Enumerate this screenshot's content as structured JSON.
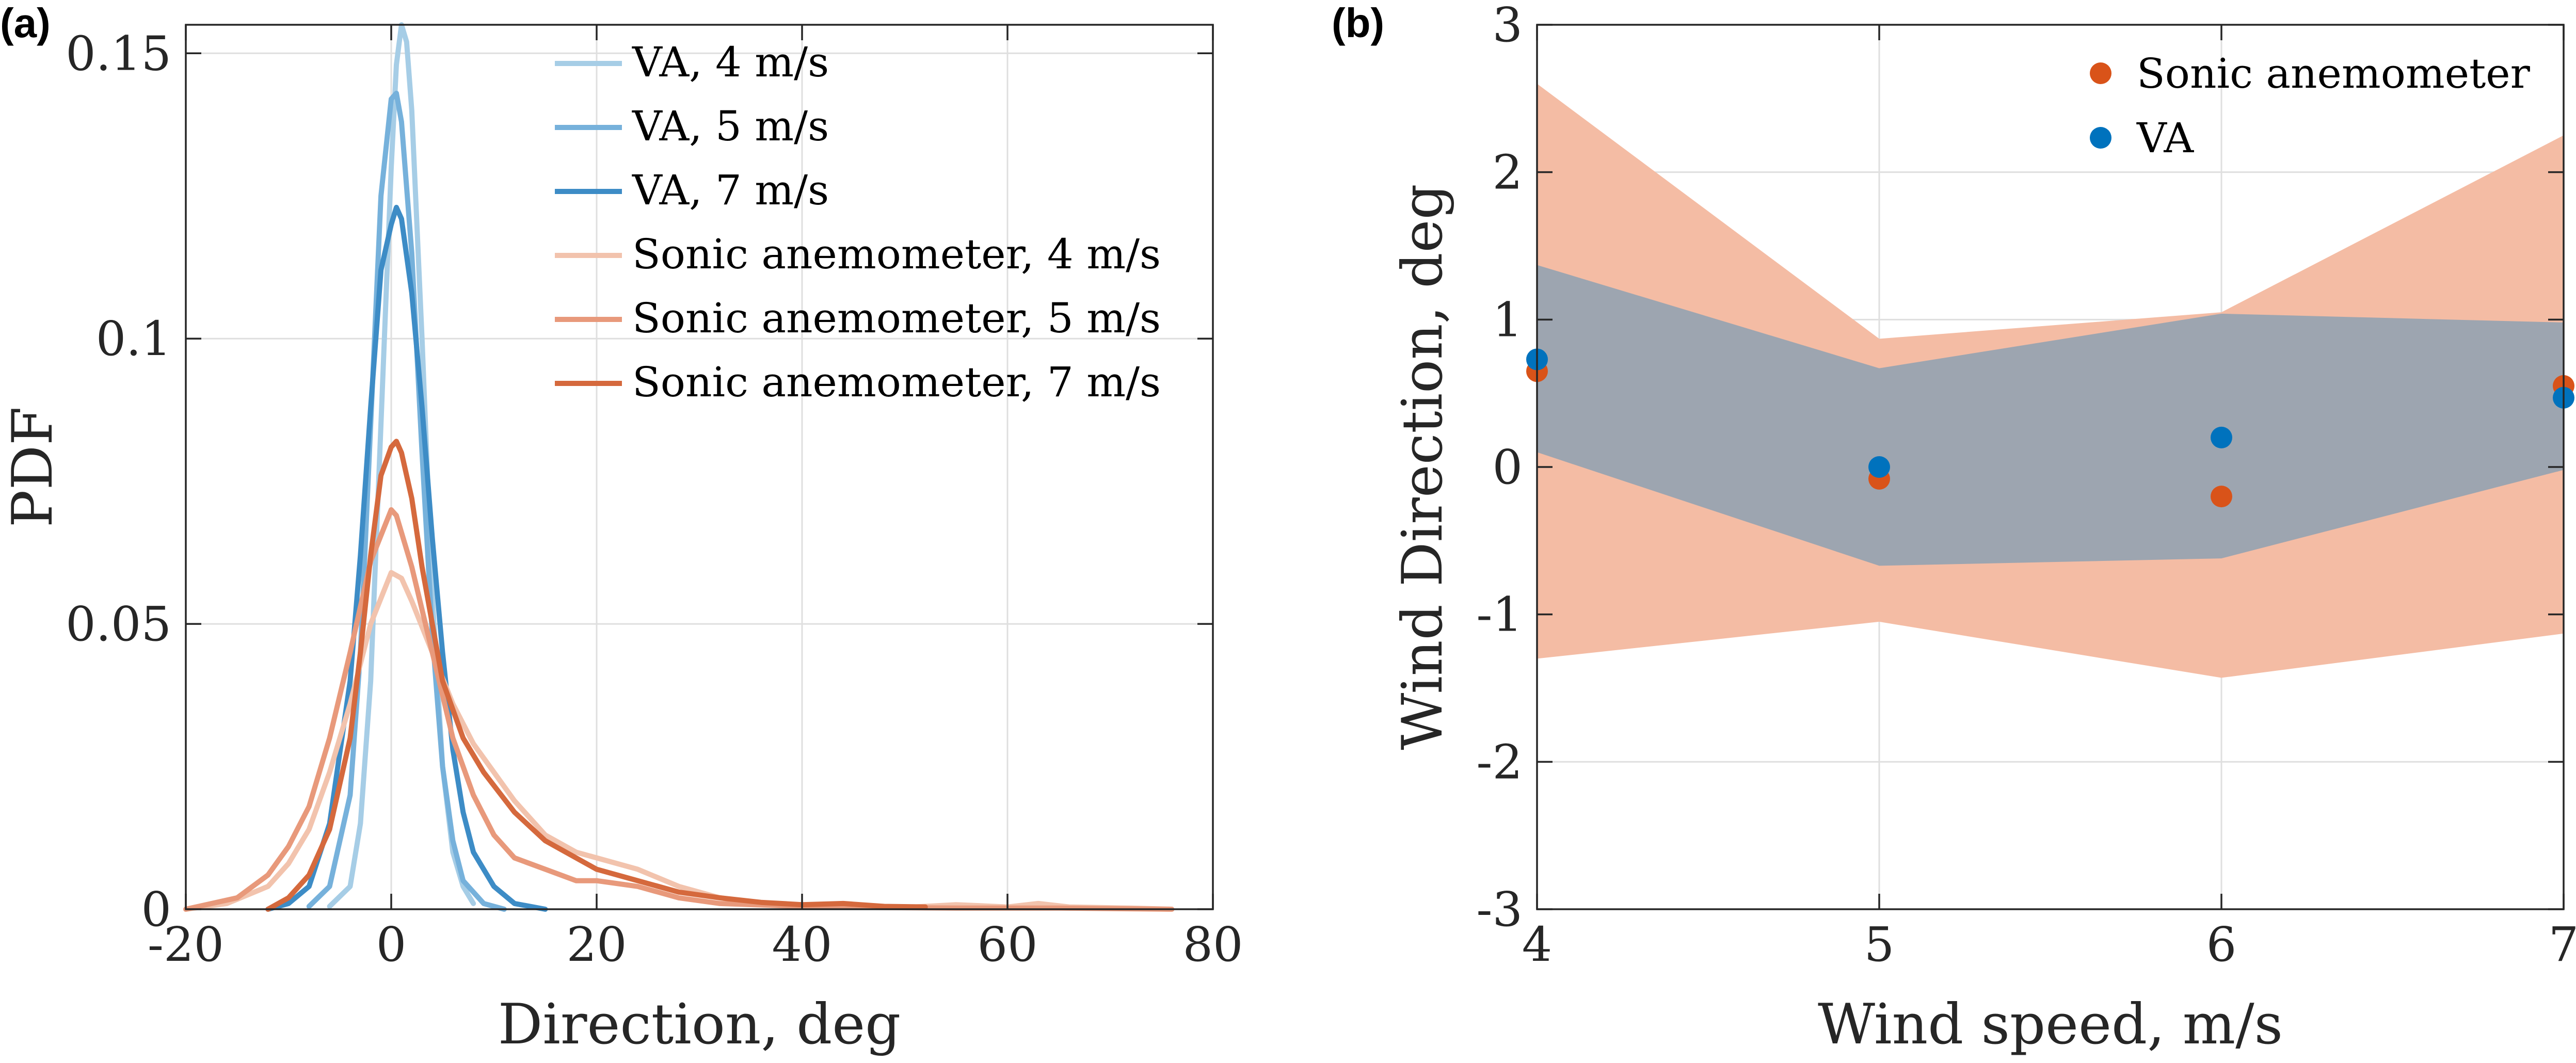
{
  "colors": {
    "va_4": "#a6cde6",
    "va_5": "#76b1db",
    "va_7": "#3d8cc6",
    "sonic_4": "#f2c3ad",
    "sonic_5": "#e8997b",
    "sonic_7": "#d5693d",
    "sonic_marker": "#d95319",
    "va_marker": "#0072bd",
    "sonic_band": "#f4bca4",
    "va_band": "#9ba4b0"
  },
  "panels": {
    "a_tag": "(a)",
    "b_tag": "(b)"
  },
  "chart_data": [
    {
      "id": "a",
      "type": "line",
      "title": "",
      "xlabel": "Direction, deg",
      "ylabel": "PDF",
      "xlim": [
        -20,
        80
      ],
      "ylim": [
        0,
        0.155
      ],
      "xticks": [
        -20,
        0,
        20,
        40,
        60,
        80
      ],
      "xtick_labels": [
        "-20",
        "0",
        "20",
        "40",
        "60",
        "80"
      ],
      "yticks": [
        0,
        0.05,
        0.1,
        0.15
      ],
      "ytick_labels": [
        "0",
        "0.05",
        "0.1",
        "0.15"
      ],
      "grid": true,
      "legend_position": "top-right",
      "series": [
        {
          "name": "VA, 4 m/s",
          "color_key": "va_4",
          "points": [
            [
              -6,
              0.0005
            ],
            [
              -4,
              0.004
            ],
            [
              -3,
              0.015
            ],
            [
              -2,
              0.04
            ],
            [
              -1,
              0.085
            ],
            [
              0,
              0.13
            ],
            [
              0.5,
              0.148
            ],
            [
              1,
              0.155
            ],
            [
              1.5,
              0.152
            ],
            [
              2,
              0.14
            ],
            [
              3,
              0.1
            ],
            [
              4,
              0.055
            ],
            [
              5,
              0.025
            ],
            [
              6,
              0.01
            ],
            [
              7,
              0.004
            ],
            [
              8,
              0.001
            ]
          ]
        },
        {
          "name": "VA, 5 m/s",
          "color_key": "va_5",
          "points": [
            [
              -8,
              0.0005
            ],
            [
              -6,
              0.004
            ],
            [
              -4,
              0.02
            ],
            [
              -3,
              0.045
            ],
            [
              -2,
              0.085
            ],
            [
              -1,
              0.125
            ],
            [
              0,
              0.142
            ],
            [
              0.5,
              0.143
            ],
            [
              1,
              0.138
            ],
            [
              2,
              0.115
            ],
            [
              3,
              0.08
            ],
            [
              4,
              0.048
            ],
            [
              5,
              0.025
            ],
            [
              6,
              0.012
            ],
            [
              7,
              0.005
            ],
            [
              9,
              0.001
            ],
            [
              11,
              0
            ]
          ]
        },
        {
          "name": "VA, 7 m/s",
          "color_key": "va_7",
          "points": [
            [
              -12,
              0
            ],
            [
              -10,
              0.001
            ],
            [
              -8,
              0.004
            ],
            [
              -6,
              0.015
            ],
            [
              -4,
              0.04
            ],
            [
              -3,
              0.062
            ],
            [
              -2,
              0.088
            ],
            [
              -1,
              0.112
            ],
            [
              0,
              0.12
            ],
            [
              0.5,
              0.123
            ],
            [
              1,
              0.121
            ],
            [
              2,
              0.108
            ],
            [
              3,
              0.088
            ],
            [
              4,
              0.065
            ],
            [
              5,
              0.045
            ],
            [
              6,
              0.028
            ],
            [
              7,
              0.017
            ],
            [
              8,
              0.01
            ],
            [
              10,
              0.004
            ],
            [
              12,
              0.001
            ],
            [
              15,
              0
            ]
          ]
        },
        {
          "name": "Sonic anemometer, 4 m/s",
          "color_key": "sonic_4",
          "points": [
            [
              -20,
              0
            ],
            [
              -16,
              0.001
            ],
            [
              -12,
              0.004
            ],
            [
              -10,
              0.008
            ],
            [
              -8,
              0.014
            ],
            [
              -6,
              0.024
            ],
            [
              -4,
              0.036
            ],
            [
              -2,
              0.05
            ],
            [
              0,
              0.059
            ],
            [
              1,
              0.058
            ],
            [
              2,
              0.054
            ],
            [
              4,
              0.045
            ],
            [
              6,
              0.036
            ],
            [
              8,
              0.029
            ],
            [
              10,
              0.024
            ],
            [
              12,
              0.019
            ],
            [
              15,
              0.013
            ],
            [
              18,
              0.01
            ],
            [
              20,
              0.009
            ],
            [
              24,
              0.007
            ],
            [
              28,
              0.004
            ],
            [
              32,
              0.002
            ],
            [
              36,
              0.001
            ],
            [
              40,
              0.0005
            ],
            [
              50,
              0.0003
            ],
            [
              55,
              0.0008
            ],
            [
              60,
              0.0004
            ],
            [
              63,
              0.001
            ],
            [
              66,
              0.0004
            ],
            [
              72,
              0.0002
            ],
            [
              76,
              0
            ]
          ]
        },
        {
          "name": "Sonic anemometer, 5 m/s",
          "color_key": "sonic_5",
          "points": [
            [
              -20,
              0
            ],
            [
              -15,
              0.002
            ],
            [
              -12,
              0.006
            ],
            [
              -10,
              0.011
            ],
            [
              -8,
              0.018
            ],
            [
              -6,
              0.03
            ],
            [
              -4,
              0.045
            ],
            [
              -2,
              0.061
            ],
            [
              0,
              0.07
            ],
            [
              0.5,
              0.069
            ],
            [
              2,
              0.06
            ],
            [
              4,
              0.045
            ],
            [
              6,
              0.03
            ],
            [
              8,
              0.02
            ],
            [
              10,
              0.013
            ],
            [
              12,
              0.009
            ],
            [
              15,
              0.007
            ],
            [
              18,
              0.005
            ],
            [
              20,
              0.005
            ],
            [
              24,
              0.004
            ],
            [
              28,
              0.002
            ],
            [
              32,
              0.001
            ],
            [
              40,
              0.0005
            ],
            [
              48,
              0.0003
            ],
            [
              55,
              0.0002
            ],
            [
              65,
              0.0002
            ],
            [
              76,
              0
            ]
          ]
        },
        {
          "name": "Sonic anemometer, 7 m/s",
          "color_key": "sonic_7",
          "points": [
            [
              -12,
              0
            ],
            [
              -10,
              0.002
            ],
            [
              -8,
              0.006
            ],
            [
              -6,
              0.014
            ],
            [
              -4,
              0.03
            ],
            [
              -3,
              0.045
            ],
            [
              -2,
              0.062
            ],
            [
              -1,
              0.076
            ],
            [
              0,
              0.081
            ],
            [
              0.5,
              0.082
            ],
            [
              1,
              0.08
            ],
            [
              2,
              0.072
            ],
            [
              3,
              0.06
            ],
            [
              4,
              0.05
            ],
            [
              5,
              0.04
            ],
            [
              7,
              0.03
            ],
            [
              9,
              0.024
            ],
            [
              12,
              0.017
            ],
            [
              15,
              0.012
            ],
            [
              18,
              0.009
            ],
            [
              20,
              0.007
            ],
            [
              24,
              0.005
            ],
            [
              28,
              0.003
            ],
            [
              32,
              0.002
            ],
            [
              36,
              0.0012
            ],
            [
              40,
              0.0008
            ],
            [
              44,
              0.001
            ],
            [
              48,
              0.0005
            ],
            [
              52,
              0.0004
            ]
          ]
        }
      ]
    },
    {
      "id": "b",
      "type": "scatter",
      "title": "",
      "xlabel": "Wind speed, m/s",
      "ylabel": "Wind Direction, deg",
      "xlim": [
        4,
        7
      ],
      "ylim": [
        -3,
        3
      ],
      "xticks": [
        4,
        5,
        6,
        7
      ],
      "xtick_labels": [
        "4",
        "5",
        "6",
        "7"
      ],
      "yticks": [
        -3,
        -2,
        -1,
        0,
        1,
        2,
        3
      ],
      "ytick_labels": [
        "-3",
        "-2",
        "-1",
        "0",
        "1",
        "2",
        "3"
      ],
      "grid": true,
      "legend_position": "top-right",
      "x": [
        4,
        5,
        6,
        7
      ],
      "series": [
        {
          "name": "Sonic anemometer",
          "color_key": "sonic_marker",
          "band_color_key": "sonic_band",
          "values": [
            0.65,
            -0.08,
            -0.2,
            0.55
          ],
          "upper": [
            2.6,
            0.87,
            1.05,
            2.25
          ],
          "lower": [
            -1.3,
            -1.05,
            -1.43,
            -1.13
          ]
        },
        {
          "name": "VA",
          "color_key": "va_marker",
          "band_color_key": "va_band",
          "values": [
            0.73,
            0.0,
            0.2,
            0.47
          ],
          "upper": [
            1.37,
            0.67,
            1.04,
            0.98
          ],
          "lower": [
            0.1,
            -0.67,
            -0.62,
            -0.02
          ]
        }
      ]
    }
  ]
}
